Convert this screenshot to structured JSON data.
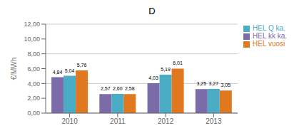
{
  "chart_data": {
    "type": "bar",
    "title": "D",
    "ylabel": "€/MWh",
    "categories": [
      "2010",
      "2011",
      "2012",
      "2013"
    ],
    "series": [
      {
        "name": "HEL kk ka.",
        "color": "#7B6BA8",
        "values": [
          4.84,
          2.57,
          4.03,
          3.25
        ],
        "value_labels": [
          "4,84",
          "2,57",
          "4,03",
          "3,25"
        ]
      },
      {
        "name": "HEL Q ka.",
        "color": "#4BACC6",
        "values": [
          5.04,
          2.6,
          5.19,
          3.27
        ],
        "value_labels": [
          "5,04",
          "2,60",
          "5,19",
          "3,27"
        ]
      },
      {
        "name": "HEL vuosi",
        "color": "#E07820",
        "values": [
          5.76,
          2.58,
          6.01,
          3.05
        ],
        "value_labels": [
          "5,76",
          "2,58",
          "6,01",
          "3,05"
        ]
      }
    ],
    "ylim": [
      0,
      12
    ],
    "yticks": [
      {
        "value": 0,
        "label": "0,00"
      },
      {
        "value": 2.0,
        "label": "2,00"
      },
      {
        "value": 4.0,
        "label": "4,00"
      },
      {
        "value": 6.0,
        "label": "6,00"
      },
      {
        "value": 8.0,
        "label": "8,00"
      },
      {
        "value": 10.0,
        "label": "10,00"
      },
      {
        "value": 12.0,
        "label": "12,00"
      }
    ],
    "grid": true,
    "legend": "right",
    "data_labels": true
  }
}
